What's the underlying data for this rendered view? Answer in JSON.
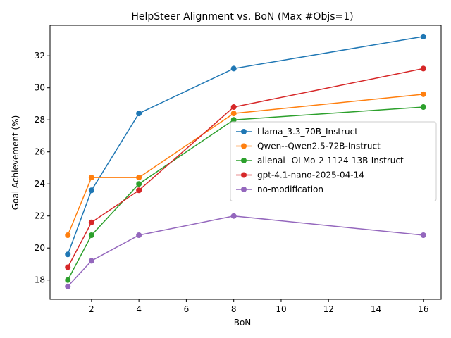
{
  "chart_data": {
    "type": "line",
    "title": "HelpSteer Alignment vs. BoN (Max #Objs=1)",
    "xlabel": "BoN",
    "ylabel": "Goal Achievement (%)",
    "x": [
      1,
      2,
      4,
      8,
      16
    ],
    "xlim": [
      0.25,
      16.75
    ],
    "ylim": [
      16.8,
      33.9
    ],
    "xticks": [
      2,
      4,
      6,
      8,
      10,
      12,
      14,
      16
    ],
    "yticks": [
      18,
      20,
      22,
      24,
      26,
      28,
      30,
      32
    ],
    "grid": false,
    "legend_position": "center-right",
    "series": [
      {
        "name": "Llama_3.3_70B_Instruct",
        "color": "#1f77b4",
        "values": [
          19.6,
          23.6,
          28.4,
          31.2,
          33.2
        ]
      },
      {
        "name": "Qwen--Qwen2.5-72B-Instruct",
        "color": "#ff7f0e",
        "values": [
          20.8,
          24.4,
          24.4,
          28.4,
          29.6
        ]
      },
      {
        "name": "allenai--OLMo-2-1124-13B-Instruct",
        "color": "#2ca02c",
        "values": [
          18.0,
          20.8,
          24.0,
          28.0,
          28.8
        ]
      },
      {
        "name": "gpt-4.1-nano-2025-04-14",
        "color": "#d62728",
        "values": [
          18.8,
          21.6,
          23.6,
          28.8,
          31.2
        ]
      },
      {
        "name": "no-modification",
        "color": "#9467bd",
        "values": [
          17.6,
          19.2,
          20.8,
          22.0,
          20.8
        ]
      }
    ]
  }
}
